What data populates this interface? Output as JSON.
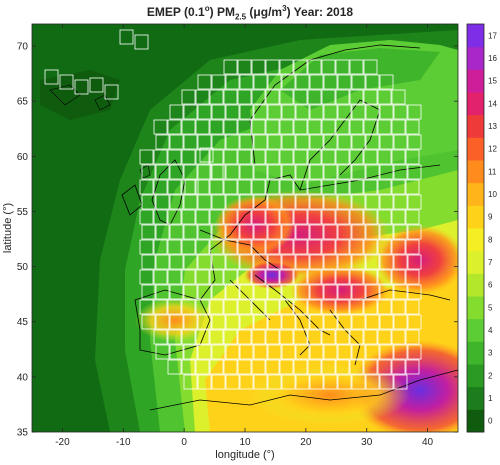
{
  "title": {
    "prefix": "EMEP (0.1",
    "deg": "o",
    "mid": ") PM",
    "sub": "2.5",
    "unit_open": " (μg/m",
    "unit_sup": "3",
    "suffix": ")  Year: 2018"
  },
  "axes": {
    "xlabel": "longitude (°)",
    "ylabel": "latitude (°)",
    "xticks": [
      "-20",
      "-10",
      "0",
      "10",
      "20",
      "30",
      "40"
    ],
    "yticks": [
      "35",
      "40",
      "45",
      "50",
      "55",
      "60",
      "65",
      "70"
    ]
  },
  "map_extent": {
    "lon": [
      -25,
      45
    ],
    "lat": [
      35,
      72
    ]
  },
  "colorbar": {
    "ticks": [
      "0",
      "1",
      "2",
      "3",
      "4",
      "5",
      "6",
      "7",
      "8",
      "9",
      "10",
      "11",
      "12",
      "13",
      "14",
      "15",
      "16",
      "17"
    ],
    "colors": [
      "#0f5c0f",
      "#1b7d1b",
      "#2a9a22",
      "#3fb52c",
      "#5ccd34",
      "#84dc2f",
      "#b3e82a",
      "#dcf02b",
      "#f6ee24",
      "#ffd21a",
      "#ffb41a",
      "#ff8c1c",
      "#fb6127",
      "#ef3a3a",
      "#e2226a",
      "#cf1e99",
      "#a927c8",
      "#7d2ee6"
    ]
  },
  "map_colors": {
    "ocean_far": "#116b13",
    "ocean_mid": "#2a9a22",
    "grid_lines": "#ffffff",
    "coast": "#000000"
  }
}
